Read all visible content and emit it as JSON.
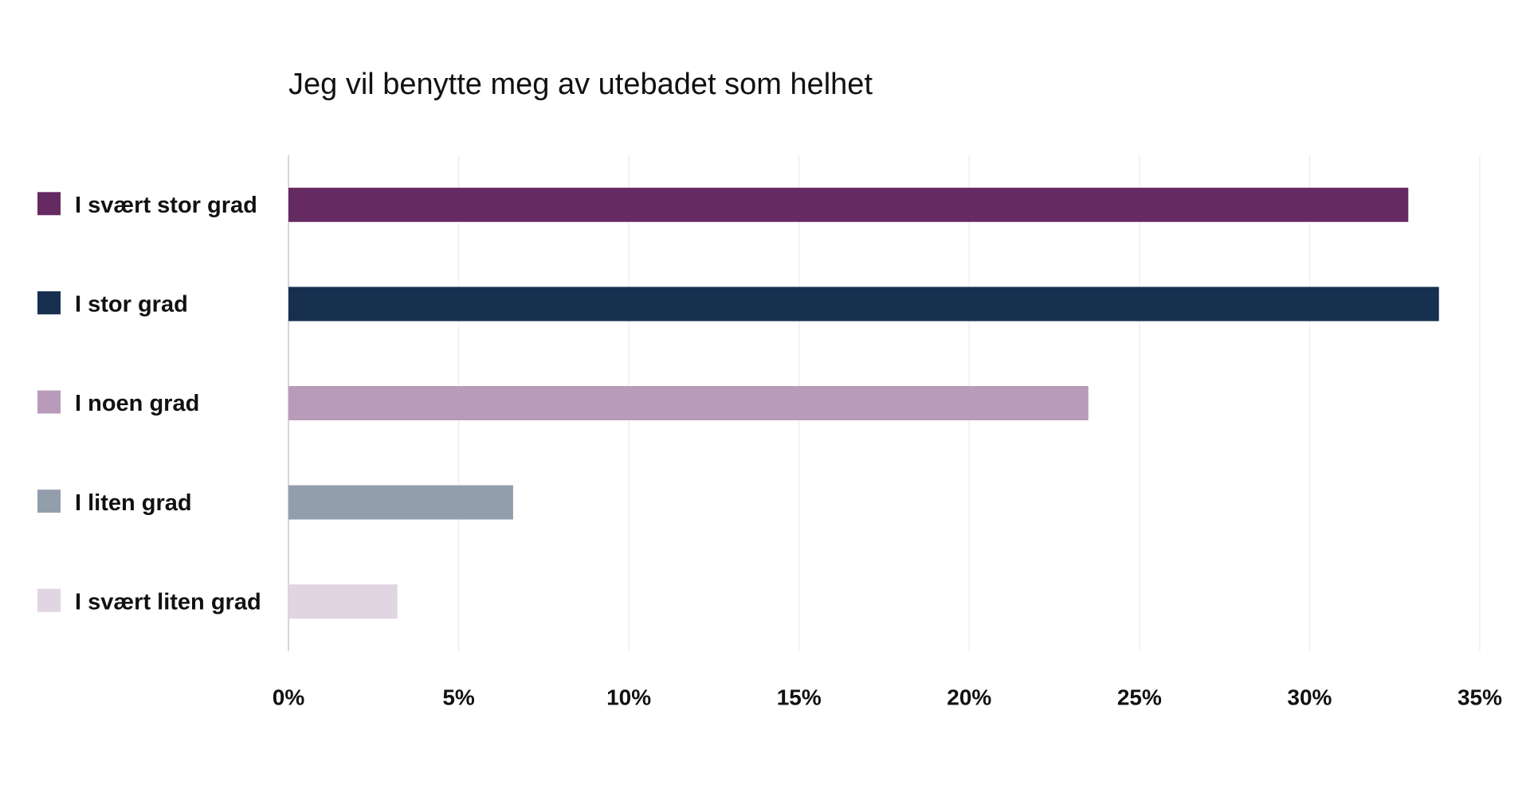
{
  "chart_data": {
    "type": "hbar",
    "title": "Jeg vil benytte meg av utebadet som helhet",
    "categories": [
      "I svært stor grad",
      "I stor grad",
      "I noen grad",
      "I liten grad",
      "I svært liten grad"
    ],
    "values": [
      32.9,
      33.8,
      23.5,
      6.6,
      3.2
    ],
    "colors": [
      "#662a62",
      "#173050",
      "#b89bb8",
      "#939eac",
      "#e0d5e0"
    ],
    "xlim": [
      0,
      35
    ],
    "xticks": [
      {
        "value": 0,
        "label": "0%"
      },
      {
        "value": 5,
        "label": "5%"
      },
      {
        "value": 10,
        "label": "10%"
      },
      {
        "value": 15,
        "label": "15%"
      },
      {
        "value": 20,
        "label": "20%"
      },
      {
        "value": 25,
        "label": "25%"
      },
      {
        "value": 30,
        "label": "30%"
      },
      {
        "value": 35,
        "label": "35%"
      }
    ],
    "grid": true
  }
}
